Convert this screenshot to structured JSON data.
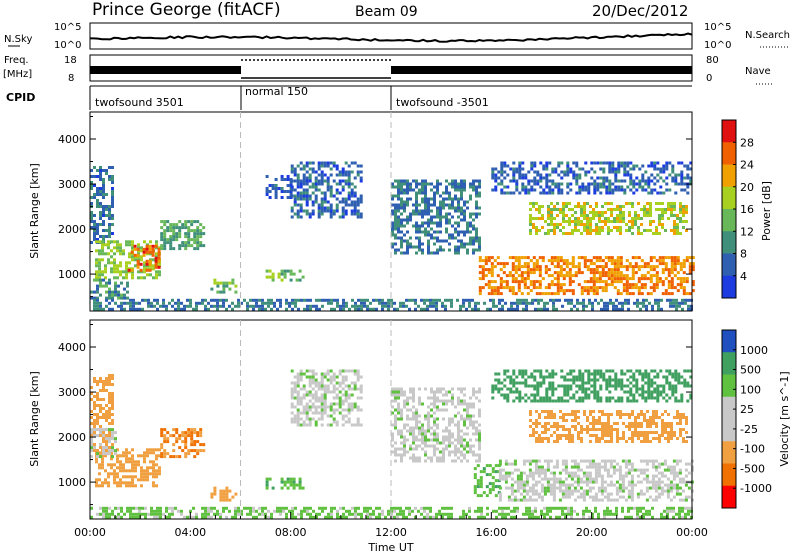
{
  "header": {
    "radar": "Prince George (fitACF)",
    "beam": "Beam 09",
    "date": "20/Dec/2012"
  },
  "top_panels": {
    "nsky_label": "N.Sky",
    "nsky_ticks": [
      "10^5",
      "10^0"
    ],
    "nsearch_label": "N.Search",
    "nsearch_ticks": [
      "10^5",
      "10^0"
    ],
    "freq_label_1": "Freq.",
    "freq_label_2": "[MHz]",
    "freq_ticks": [
      "18",
      "8"
    ],
    "nave_label": "Nave",
    "nave_ticks": [
      "80",
      "0"
    ],
    "cpid_label": "CPID"
  },
  "cpid_segments": [
    {
      "label": "twofsound 3501",
      "start_hour": 0,
      "end_hour": 6
    },
    {
      "label": "normal 150",
      "start_hour": 6,
      "end_hour": 12
    },
    {
      "label": "twofsound -3501",
      "start_hour": 12,
      "end_hour": 24
    }
  ],
  "colors": {
    "power_scale": [
      "#1c3ce0",
      "#2f5fb0",
      "#3f8f7a",
      "#68b85a",
      "#a8d020",
      "#f0a000",
      "#f06000",
      "#e01010"
    ],
    "velocity_scale": [
      "#ff0000",
      "#f07000",
      "#f0a040",
      "#c8c8c8",
      "#c8c8c8",
      "#60c040",
      "#40a060",
      "#2050c0"
    ],
    "velocity_gray": "#c8c8c8"
  },
  "chart_data": [
    {
      "type": "heatmap",
      "name": "power",
      "xlabel": "Time UT",
      "ylabel": "Slant Range [km]",
      "colorbar_label": "Power [dB]",
      "colorbar_ticks": [
        "28",
        "24",
        "20",
        "16",
        "12",
        "8",
        "4"
      ],
      "colorbar_range": [
        0,
        32
      ],
      "x_range_hours": [
        0,
        24
      ],
      "ylim": [
        180,
        4600
      ],
      "yticks": [
        "1000",
        "2000",
        "3000",
        "4000"
      ],
      "regions": [
        {
          "t0": 0.0,
          "t1": 0.9,
          "r0": 1700,
          "r1": 3400,
          "v": 7
        },
        {
          "t0": 0.2,
          "t1": 2.8,
          "r0": 950,
          "r1": 1750,
          "v": 16
        },
        {
          "t0": 1.5,
          "t1": 2.8,
          "r0": 1100,
          "r1": 1650,
          "v": 26
        },
        {
          "t0": 0.0,
          "t1": 1.5,
          "r0": 500,
          "r1": 900,
          "v": 10
        },
        {
          "t0": 2.8,
          "t1": 4.5,
          "r0": 1600,
          "r1": 2200,
          "v": 12
        },
        {
          "t0": 4.8,
          "t1": 5.8,
          "r0": 600,
          "r1": 900,
          "v": 14
        },
        {
          "t0": 7.0,
          "t1": 8.5,
          "r0": 900,
          "r1": 1100,
          "v": 14
        },
        {
          "t0": 7.0,
          "t1": 8.0,
          "r0": 2700,
          "r1": 3200,
          "v": 5
        },
        {
          "t0": 8.0,
          "t1": 10.8,
          "r0": 2300,
          "r1": 3500,
          "v": 6
        },
        {
          "t0": 12.0,
          "t1": 15.5,
          "r0": 1500,
          "r1": 3100,
          "v": 8
        },
        {
          "t0": 15.5,
          "t1": 24.0,
          "r0": 600,
          "r1": 1400,
          "v": 24
        },
        {
          "t0": 17.5,
          "t1": 23.8,
          "r0": 1900,
          "r1": 2600,
          "v": 18
        },
        {
          "t0": 16.0,
          "t1": 24.0,
          "r0": 2800,
          "r1": 3500,
          "v": 6
        },
        {
          "t0": 0.0,
          "t1": 24.0,
          "r0": 200,
          "r1": 450,
          "v": 8
        }
      ]
    },
    {
      "type": "heatmap",
      "name": "velocity",
      "xlabel": "Time UT",
      "ylabel": "Slant Range [km]",
      "colorbar_label": "Velocity [m s^-1]",
      "colorbar_ticks": [
        "1000",
        "500",
        "100",
        "25",
        "-25",
        "-100",
        "-500",
        "-1000"
      ],
      "x_range_hours": [
        0,
        24
      ],
      "x_ticks": [
        "00:00",
        "04:00",
        "08:00",
        "12:00",
        "16:00",
        "20:00",
        "00:00"
      ],
      "ylim": [
        180,
        4600
      ],
      "yticks": [
        "1000",
        "2000",
        "3000",
        "4000"
      ],
      "regions": [
        {
          "t0": 0.0,
          "t1": 0.9,
          "r0": 1700,
          "r1": 3400,
          "v": -200
        },
        {
          "t0": 0.2,
          "t1": 2.8,
          "r0": 950,
          "r1": 1750,
          "v": -300
        },
        {
          "t0": 0.0,
          "t1": 1.0,
          "r0": 1600,
          "r1": 2200,
          "v": 0
        },
        {
          "t0": 2.8,
          "t1": 4.5,
          "r0": 1600,
          "r1": 2200,
          "v": -500
        },
        {
          "t0": 4.8,
          "t1": 5.8,
          "r0": 600,
          "r1": 900,
          "v": -400
        },
        {
          "t0": 7.0,
          "t1": 8.5,
          "r0": 900,
          "r1": 1100,
          "v": 80
        },
        {
          "t0": 8.0,
          "t1": 10.8,
          "r0": 2300,
          "r1": 3500,
          "v": 0
        },
        {
          "t0": 12.0,
          "t1": 15.5,
          "r0": 1500,
          "r1": 3100,
          "v": 0
        },
        {
          "t0": 15.3,
          "t1": 16.3,
          "r0": 700,
          "r1": 1400,
          "v": 80
        },
        {
          "t0": 16.3,
          "t1": 24.0,
          "r0": 600,
          "r1": 1500,
          "v": 0
        },
        {
          "t0": 17.5,
          "t1": 23.8,
          "r0": 1900,
          "r1": 2600,
          "v": -400
        },
        {
          "t0": 16.0,
          "t1": 24.0,
          "r0": 2800,
          "r1": 3500,
          "v": 150
        },
        {
          "t0": 0.0,
          "t1": 24.0,
          "r0": 200,
          "r1": 450,
          "v": 50
        }
      ]
    }
  ]
}
